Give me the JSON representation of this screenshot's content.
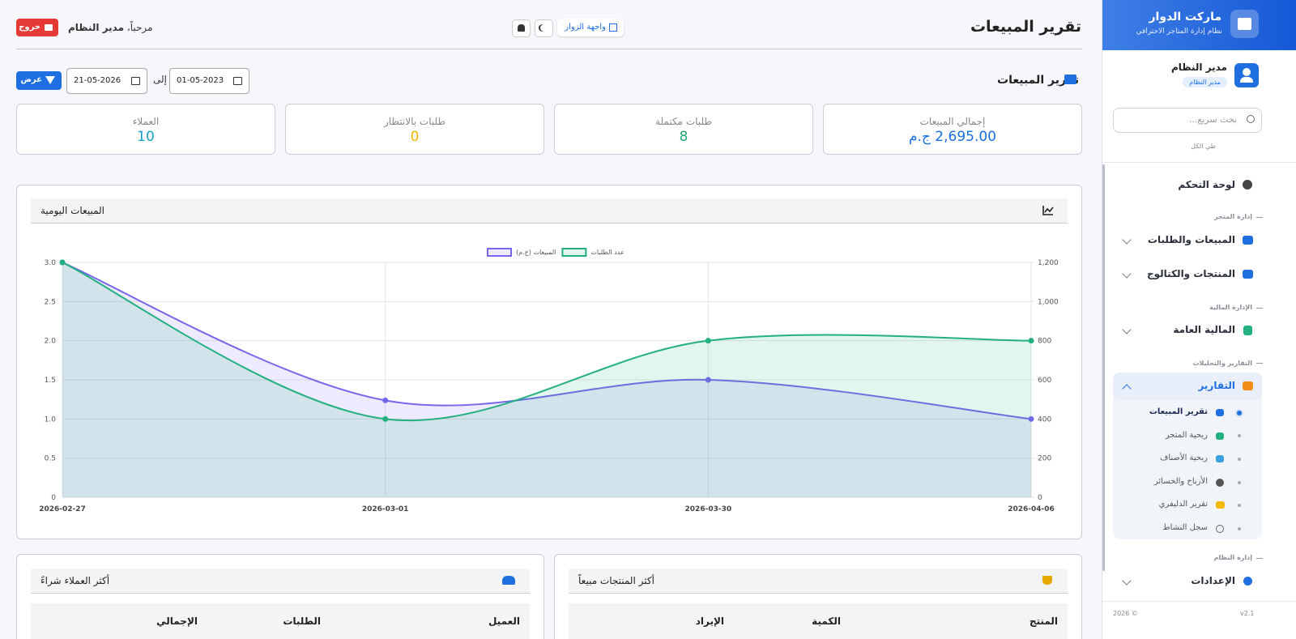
{
  "sidebar": {
    "brand_title": "ماركت الدوار",
    "brand_subtitle": "نظام إدارة المتاجر الاحترافي",
    "user_name": "مدير النظام",
    "user_role": "مدير النظام",
    "search_placeholder": "بحث سريع...",
    "collapse_all": "طي الكل",
    "menu": [
      {
        "label": "لوحة التحكم"
      },
      {
        "section": "إدارة المتجر"
      },
      {
        "label": "المبيعات والطلبات"
      },
      {
        "label": "المنتجات والكتالوج"
      },
      {
        "section": "الإدارة المالية"
      },
      {
        "label": "المالية العامة"
      },
      {
        "section": "التقارير والتحليلات"
      },
      {
        "label": "التقارير",
        "children": [
          "تقرير المبيعات",
          "ربحية المتجر",
          "ربحية الأصناف",
          "الأرباح والخسائر",
          "تقرير الدليفري",
          "سجل النشاط"
        ]
      },
      {
        "section": "إدارة النظام"
      },
      {
        "label": "الإعدادات"
      }
    ],
    "version": "v2.1",
    "copyright": "2026 ©"
  },
  "header": {
    "title": "تقرير المبيعات",
    "visitor_link": "واجهة الزوار",
    "welcome": "مرحباً،",
    "user_name": "مدير النظام",
    "logout": "خروج"
  },
  "filter": {
    "heading": "تقرير المبيعات",
    "from_date": "01-05-2023",
    "to_label": "إلى",
    "to_date": "21-05-2026",
    "submit": "عرض"
  },
  "stats": [
    {
      "label": "إجمالي المبيعات",
      "value": "2,695.00 ج.م"
    },
    {
      "label": "طلبات مكتملة",
      "value": "8"
    },
    {
      "label": "طلبات بالانتظار",
      "value": "0"
    },
    {
      "label": "العملاء",
      "value": "10"
    }
  ],
  "daily_chart": {
    "type": "line",
    "title": "المبيعات اليومية",
    "categories": [
      "2026-02-27",
      "2026-03-01",
      "2026-03-30",
      "2026-04-06"
    ],
    "series": [
      {
        "name": "المبيعات (ج.م)",
        "color": "#7566ee",
        "axis": "y2",
        "values": [
          1200,
          495,
          600,
          400
        ]
      },
      {
        "name": "عدد الطلبات",
        "color": "#22b07f",
        "values": [
          3,
          1,
          2,
          2
        ]
      }
    ],
    "ylim": [
      0,
      3
    ],
    "yticks": [
      0,
      0.5,
      {
        "value": 1,
        "label": "1.0"
      },
      1.5,
      {
        "value": 2,
        "label": "2.0"
      },
      2.5,
      {
        "value": 3,
        "label": "3.0"
      }
    ],
    "y2lim": [
      0,
      1200
    ],
    "y2ticks": [
      0,
      200,
      400,
      600,
      800,
      {
        "value": 1000,
        "label": "1,000"
      },
      {
        "value": 1200,
        "label": "1,200"
      }
    ],
    "grid": true,
    "legend": "top"
  },
  "top_customers": {
    "title": "أكثر العملاء شراءً",
    "columns": [
      "العميل",
      "الطلبات",
      "الإجمالي"
    ]
  },
  "top_products": {
    "title": "أكثر المنتجات مبيعاً",
    "columns": [
      "المنتج",
      "الكمية",
      "الإيراد"
    ]
  }
}
